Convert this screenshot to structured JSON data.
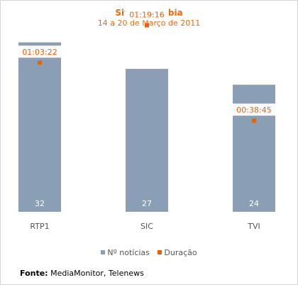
{
  "chart_data": {
    "type": "bar+point",
    "title": "Situação Líbia",
    "subtitle": "14 a 20 de Março de 2011",
    "categories": [
      "RTP1",
      "SIC",
      "TVI"
    ],
    "series": [
      {
        "name": "Nº notícias",
        "type": "bar",
        "values": [
          32,
          27,
          24
        ],
        "value_labels": [
          "32",
          "27",
          "24"
        ],
        "color": "#8a9fb6"
      },
      {
        "name": "Duração",
        "type": "point",
        "values_seconds": [
          3802,
          4756,
          2325
        ],
        "value_labels": [
          "01:03:22",
          "01:19:16",
          "00:38:45"
        ],
        "color": "#e8620a"
      }
    ],
    "ylim_bars": [
      0,
      40
    ],
    "ylim_duration_seconds": [
      0,
      5400
    ],
    "grid": false,
    "legend_position": "bottom"
  },
  "source": {
    "label": "Fonte:",
    "text": "MediaMonitor, Telenews"
  }
}
